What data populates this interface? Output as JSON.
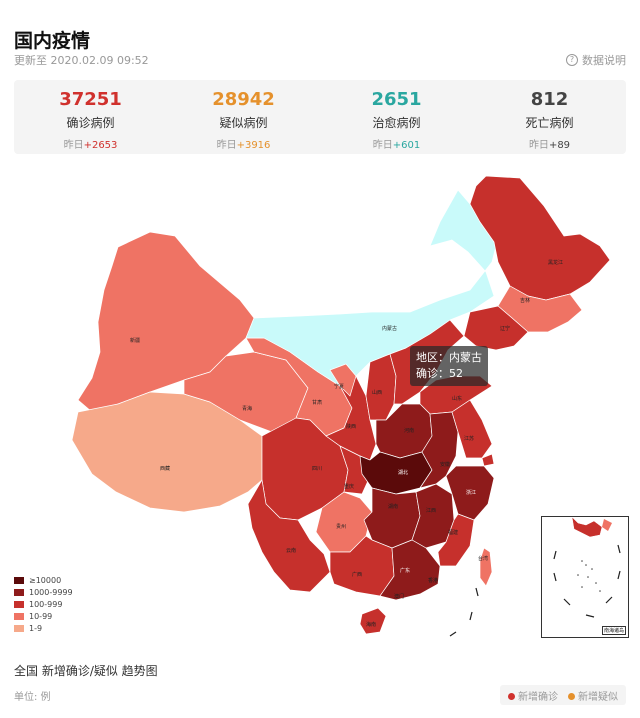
{
  "header": {
    "title": "国内疫情",
    "updated": "更新至 2020.02.09 09:52",
    "data_explain": "数据说明"
  },
  "stats": [
    {
      "value": "37251",
      "label": "确诊病例",
      "delta_prefix": "昨日",
      "delta": "+2653",
      "color": "#d0312d"
    },
    {
      "value": "28942",
      "label": "疑似病例",
      "delta_prefix": "昨日",
      "delta": "+3916",
      "color": "#e5912c"
    },
    {
      "value": "2651",
      "label": "治愈病例",
      "delta_prefix": "昨日",
      "delta": "+601",
      "color": "#2aa7a0"
    },
    {
      "value": "812",
      "label": "死亡病例",
      "delta_prefix": "昨日",
      "delta": "+89",
      "color": "#444444"
    }
  ],
  "legend": [
    {
      "label": "≥10000",
      "color": "#5b0a0a"
    },
    {
      "label": "1000-9999",
      "color": "#8e1b1b"
    },
    {
      "label": "100-999",
      "color": "#c6302c"
    },
    {
      "label": "10-99",
      "color": "#ef7364"
    },
    {
      "label": "1-9",
      "color": "#f6a98a"
    }
  ],
  "tooltip": {
    "region_line": "地区：内蒙古",
    "confirmed_line": "确诊：52"
  },
  "provinces": {
    "xinjiang": "新疆",
    "xizang": "西藏",
    "qinghai": "青海",
    "gansu": "甘肃",
    "neimenggu": "内蒙古",
    "heilongjiang": "黑龙江",
    "jilin": "吉林",
    "liaoning": "辽宁",
    "sichuan": "四川",
    "yunnan": "云南",
    "guizhou": "贵州",
    "chongqing": "重庆",
    "shaanxi": "陕西",
    "ningxia": "宁夏",
    "shanxi": "山西",
    "henan": "河南",
    "hubei": "湖北",
    "hunan": "湖南",
    "guangxi": "广西",
    "guangdong": "广东",
    "jiangxi": "江西",
    "fujian": "福建",
    "zhejiang": "浙江",
    "anhui": "安徽",
    "jiangsu": "江苏",
    "shandong": "山东",
    "hainan": "海南",
    "aomen": "澳门",
    "xianggang": "香港",
    "taiwan": "台湾"
  },
  "inset_label": "南海诸岛",
  "trend": {
    "title": "全国 新增确诊/疑似 趋势图",
    "unit": "单位: 例",
    "series": [
      {
        "name": "新增确诊",
        "color": "#d0312d"
      },
      {
        "name": "新增疑似",
        "color": "#e5912c"
      }
    ]
  }
}
